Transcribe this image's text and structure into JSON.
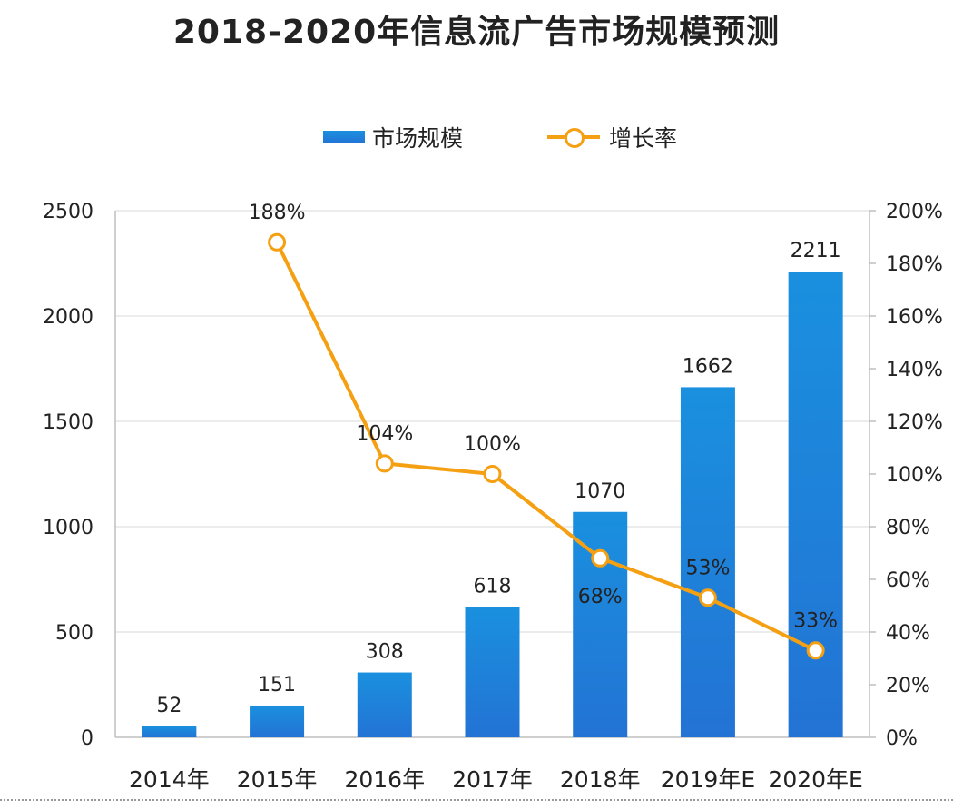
{
  "chart_data": {
    "type": "bar",
    "title": "2018-2020年信息流广告市场规模预测",
    "categories": [
      "2014年",
      "2015年",
      "2016年",
      "2017年",
      "2018年",
      "2019年E",
      "2020年E"
    ],
    "series": [
      {
        "name": "市场规模",
        "type": "bar",
        "axis": "left",
        "values": [
          52,
          151,
          308,
          618,
          1070,
          1662,
          2211
        ],
        "labels": [
          "52",
          "151",
          "308",
          "618",
          "1070",
          "1662",
          "2211"
        ]
      },
      {
        "name": "增长率",
        "type": "line",
        "axis": "right",
        "values": [
          null,
          188,
          104,
          100,
          68,
          53,
          33
        ],
        "labels": [
          "",
          "188%",
          "104%",
          "100%",
          "68%",
          "53%",
          "33%"
        ]
      }
    ],
    "y_left": {
      "min": 0,
      "max": 2500,
      "ticks": [
        "0",
        "500",
        "1000",
        "1500",
        "2000",
        "2500"
      ]
    },
    "y_right": {
      "min": 0,
      "max": 200,
      "ticks": [
        "0%",
        "20%",
        "40%",
        "60%",
        "80%",
        "100%",
        "120%",
        "140%",
        "160%",
        "180%",
        "200%"
      ]
    },
    "grid": true,
    "legend": "top-center",
    "colors": {
      "bar_top": "#1a90df",
      "bar_bottom": "#2373d4",
      "line": "#f5a012",
      "grid": "#d9d9d9",
      "text": "#222222"
    }
  }
}
